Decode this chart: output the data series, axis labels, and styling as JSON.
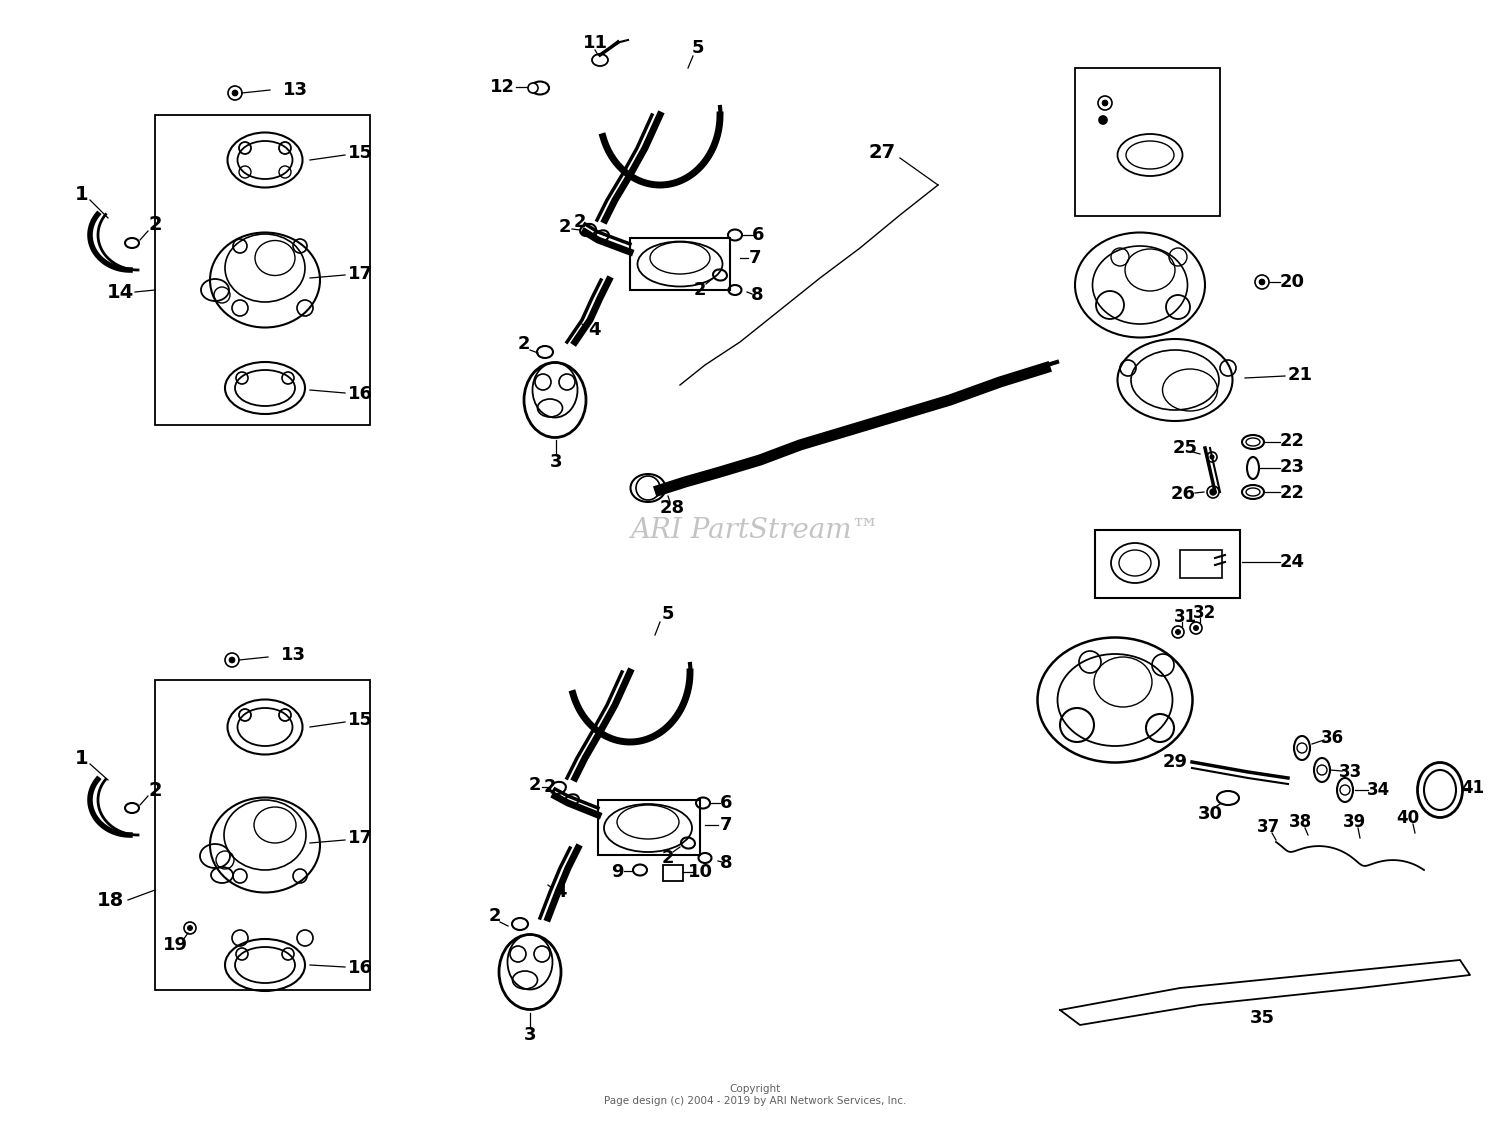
{
  "bg_color": "#ffffff",
  "watermark": "ARI PartStream™",
  "copyright": "Copyright\nPage design (c) 2004 - 2019 by ARI Network Services, Inc."
}
